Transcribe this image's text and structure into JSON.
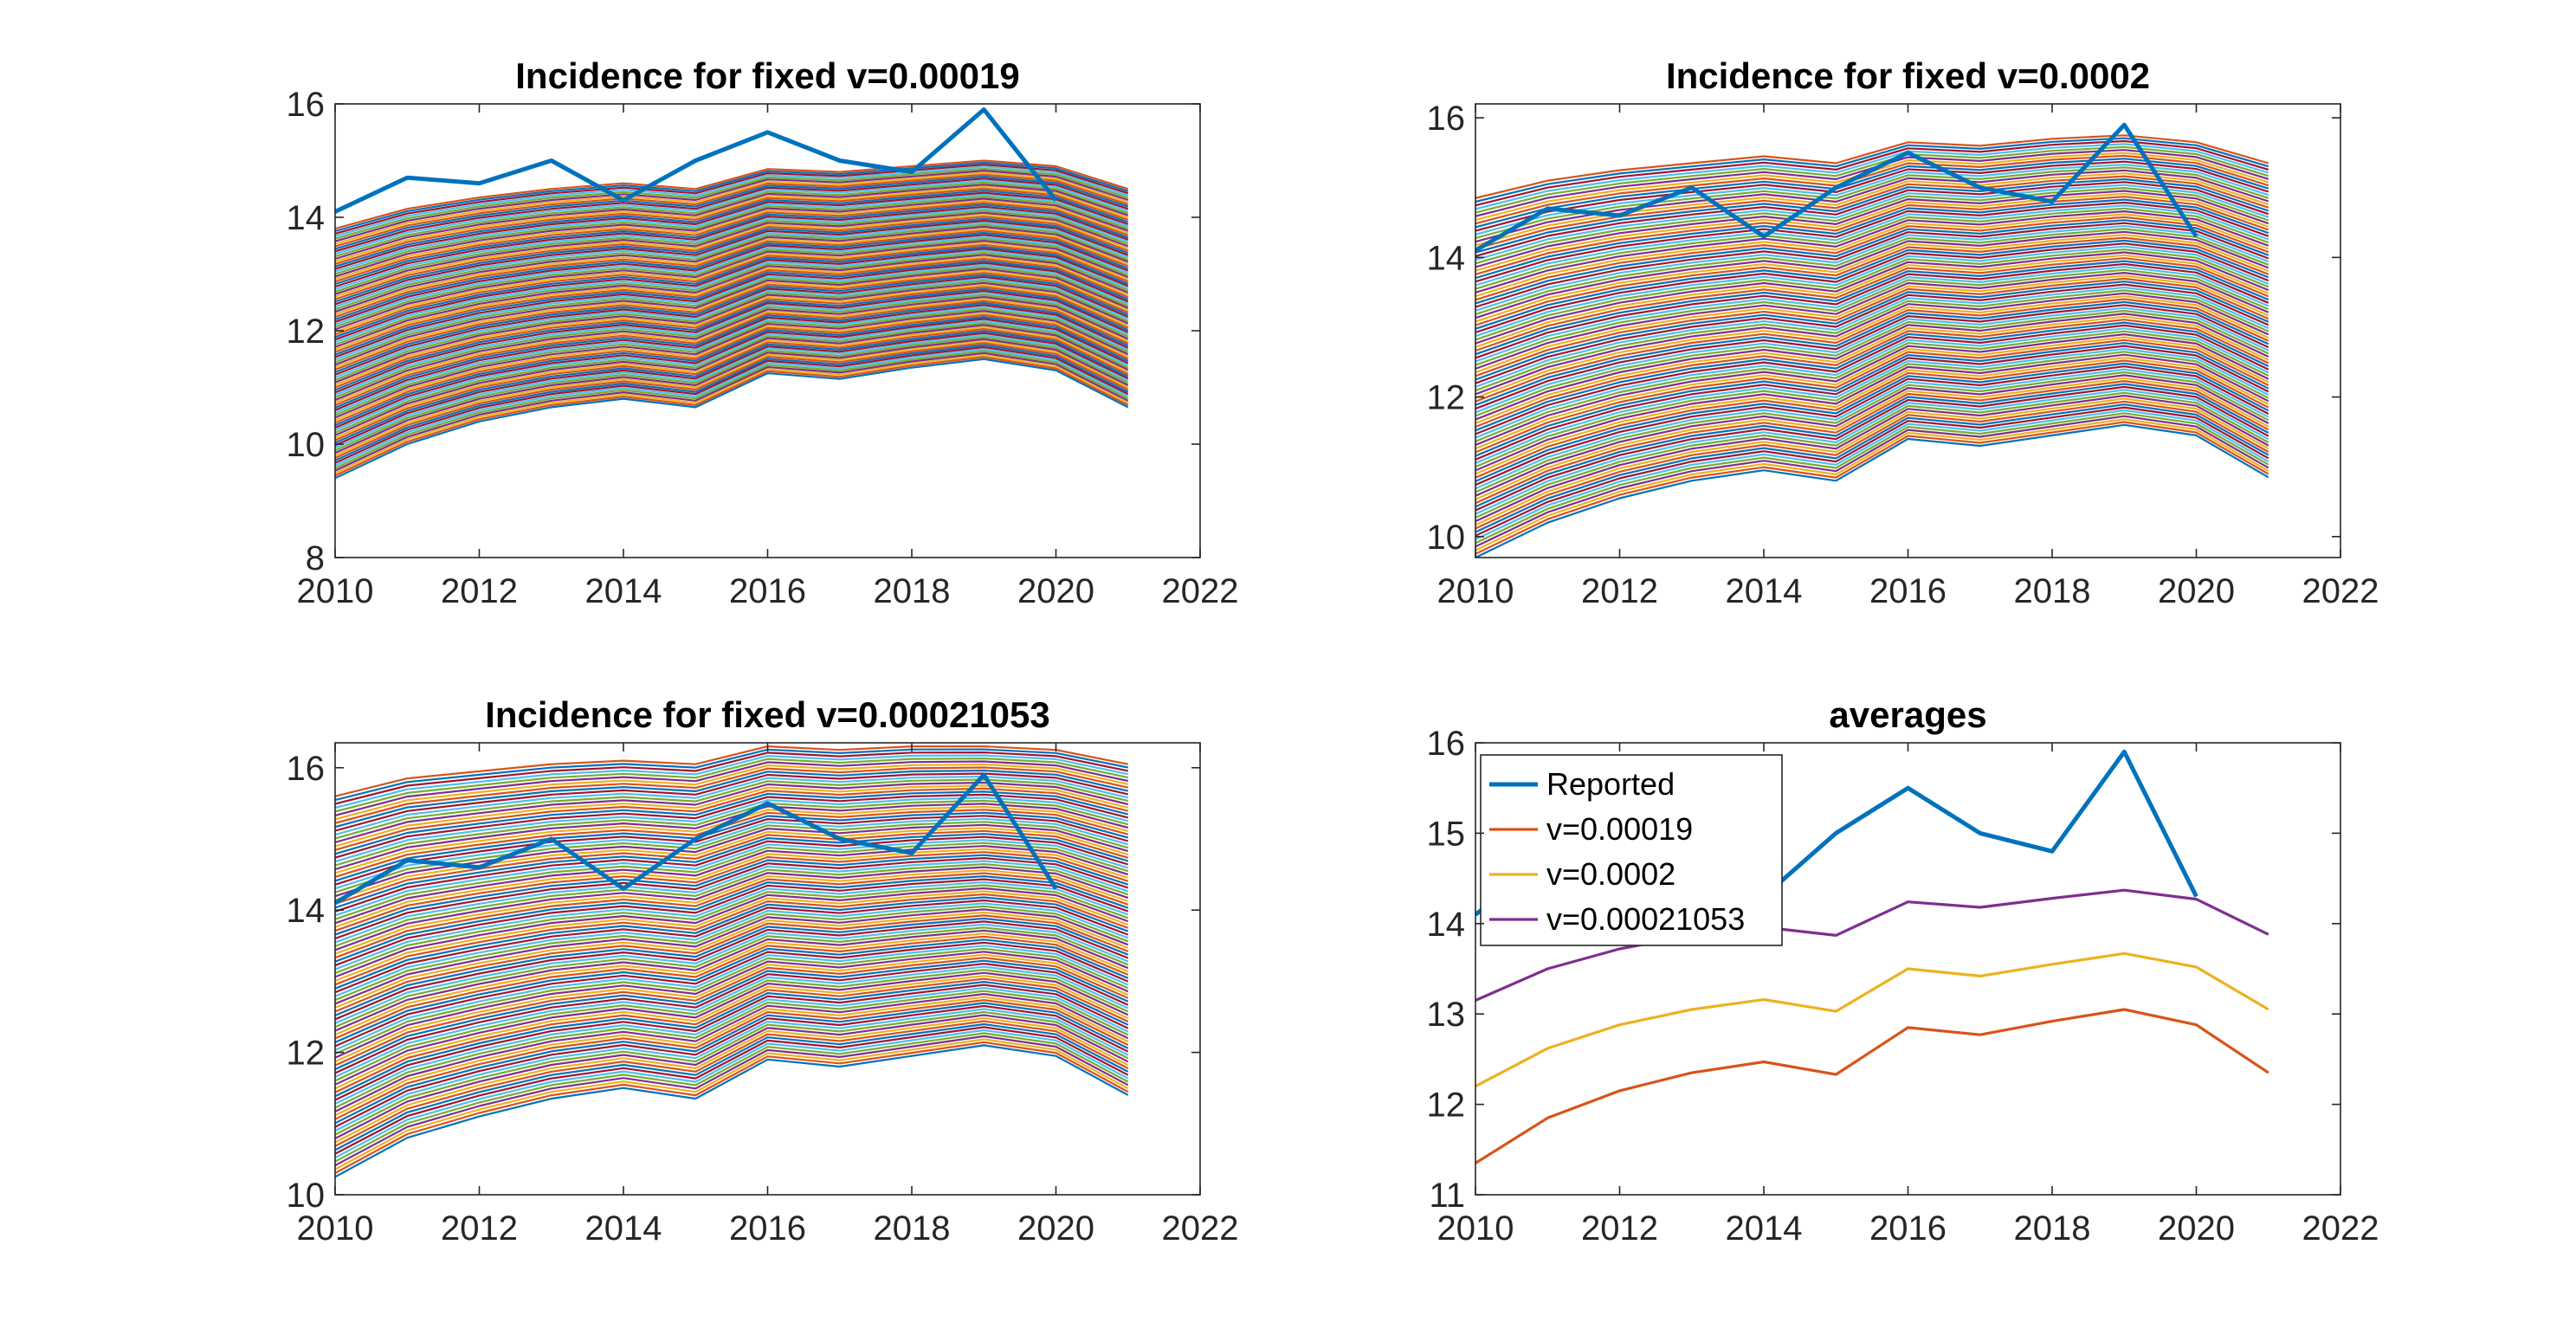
{
  "chart_data": [
    {
      "type": "line",
      "title": "Incidence for fixed v=0.00019",
      "xlabel": "",
      "ylabel": "",
      "xlim": [
        2010,
        2022
      ],
      "ylim": [
        8,
        16
      ],
      "xticks": [
        2010,
        2012,
        2014,
        2016,
        2018,
        2020,
        2022
      ],
      "yticks": [
        8,
        10,
        12,
        14,
        16
      ],
      "grid": false,
      "x": [
        2010,
        2011,
        2012,
        2013,
        2014,
        2015,
        2016,
        2017,
        2018,
        2019,
        2020,
        2021
      ],
      "reported": {
        "x": [
          2010,
          2011,
          2012,
          2013,
          2014,
          2015,
          2016,
          2017,
          2018,
          2019,
          2020
        ],
        "values": [
          14.1,
          14.7,
          14.6,
          15.0,
          14.3,
          15.0,
          15.5,
          15.0,
          14.8,
          15.9,
          14.3
        ],
        "color": "#0072BD"
      },
      "ensemble": {
        "count": 100,
        "note": "",
        "low": [
          9.4,
          10.0,
          10.4,
          10.65,
          10.8,
          10.65,
          11.25,
          11.15,
          11.35,
          11.5,
          11.3,
          10.65
        ],
        "high": [
          13.8,
          14.15,
          14.35,
          14.5,
          14.6,
          14.5,
          14.85,
          14.8,
          14.9,
          15.0,
          14.9,
          14.5
        ]
      }
    },
    {
      "type": "line",
      "title": "Incidence for fixed v=0.0002",
      "xlabel": "",
      "ylabel": "",
      "xlim": [
        2010,
        2022
      ],
      "ylim": [
        9.7,
        16.2
      ],
      "xticks": [
        2010,
        2012,
        2014,
        2016,
        2018,
        2020,
        2022
      ],
      "yticks": [
        10,
        12,
        14,
        16
      ],
      "grid": false,
      "x": [
        2010,
        2011,
        2012,
        2013,
        2014,
        2015,
        2016,
        2017,
        2018,
        2019,
        2020,
        2021
      ],
      "reported": {
        "x": [
          2010,
          2011,
          2012,
          2013,
          2014,
          2015,
          2016,
          2017,
          2018,
          2019,
          2020
        ],
        "values": [
          14.1,
          14.7,
          14.6,
          15.0,
          14.3,
          15.0,
          15.5,
          15.0,
          14.8,
          15.9,
          14.3
        ],
        "color": "#0072BD"
      },
      "ensemble": {
        "count": 100,
        "note": "",
        "low": [
          9.7,
          10.2,
          10.55,
          10.8,
          10.95,
          10.8,
          11.4,
          11.3,
          11.45,
          11.6,
          11.45,
          10.85
        ],
        "high": [
          14.85,
          15.1,
          15.25,
          15.35,
          15.45,
          15.35,
          15.65,
          15.6,
          15.7,
          15.75,
          15.65,
          15.35
        ]
      }
    },
    {
      "type": "line",
      "title": "Incidence for fixed v=0.00021053",
      "xlabel": "",
      "ylabel": "",
      "xlim": [
        2010,
        2022
      ],
      "ylim": [
        10,
        16.35
      ],
      "xticks": [
        2010,
        2012,
        2014,
        2016,
        2018,
        2020,
        2022
      ],
      "yticks": [
        10,
        12,
        14,
        16
      ],
      "grid": false,
      "x": [
        2010,
        2011,
        2012,
        2013,
        2014,
        2015,
        2016,
        2017,
        2018,
        2019,
        2020,
        2021
      ],
      "reported": {
        "x": [
          2010,
          2011,
          2012,
          2013,
          2014,
          2015,
          2016,
          2017,
          2018,
          2019,
          2020
        ],
        "values": [
          14.1,
          14.7,
          14.6,
          15.0,
          14.3,
          15.0,
          15.5,
          15.0,
          14.8,
          15.9,
          14.3
        ],
        "color": "#0072BD"
      },
      "ensemble": {
        "count": 100,
        "note": "",
        "low": [
          10.25,
          10.8,
          11.1,
          11.35,
          11.5,
          11.35,
          11.9,
          11.8,
          11.95,
          12.1,
          11.95,
          11.4
        ],
        "high": [
          15.6,
          15.85,
          15.95,
          16.05,
          16.1,
          16.05,
          16.3,
          16.25,
          16.3,
          16.3,
          16.25,
          16.05
        ]
      }
    },
    {
      "type": "line",
      "title": "averages",
      "xlabel": "",
      "ylabel": "",
      "xlim": [
        2010,
        2022
      ],
      "ylim": [
        11,
        16
      ],
      "xticks": [
        2010,
        2012,
        2014,
        2016,
        2018,
        2020,
        2022
      ],
      "yticks": [
        11,
        12,
        13,
        14,
        15,
        16
      ],
      "grid": false,
      "legend_position": "top-left",
      "series": [
        {
          "name": "Reported",
          "color": "#0072BD",
          "x": [
            2010,
            2011,
            2012,
            2013,
            2014,
            2015,
            2016,
            2017,
            2018,
            2019,
            2020
          ],
          "values": [
            14.1,
            14.7,
            14.6,
            15.0,
            14.3,
            15.0,
            15.5,
            15.0,
            14.8,
            15.9,
            14.3
          ]
        },
        {
          "name": "v=0.00019",
          "color": "#D95319",
          "x": [
            2010,
            2011,
            2012,
            2013,
            2014,
            2015,
            2016,
            2017,
            2018,
            2019,
            2020,
            2021
          ],
          "values": [
            11.35,
            11.85,
            12.15,
            12.35,
            12.47,
            12.33,
            12.85,
            12.77,
            12.92,
            13.05,
            12.88,
            12.35
          ]
        },
        {
          "name": "v=0.0002",
          "color": "#EDB120",
          "x": [
            2010,
            2011,
            2012,
            2013,
            2014,
            2015,
            2016,
            2017,
            2018,
            2019,
            2020,
            2021
          ],
          "values": [
            12.2,
            12.62,
            12.88,
            13.05,
            13.16,
            13.03,
            13.5,
            13.42,
            13.55,
            13.67,
            13.52,
            13.05
          ]
        },
        {
          "name": "v=0.00021053",
          "color": "#7E2F8E",
          "x": [
            2010,
            2011,
            2012,
            2013,
            2014,
            2015,
            2016,
            2017,
            2018,
            2019,
            2020,
            2021
          ],
          "values": [
            13.15,
            13.5,
            13.72,
            13.87,
            13.96,
            13.87,
            14.24,
            14.18,
            14.28,
            14.37,
            14.27,
            13.88
          ]
        }
      ]
    }
  ]
}
